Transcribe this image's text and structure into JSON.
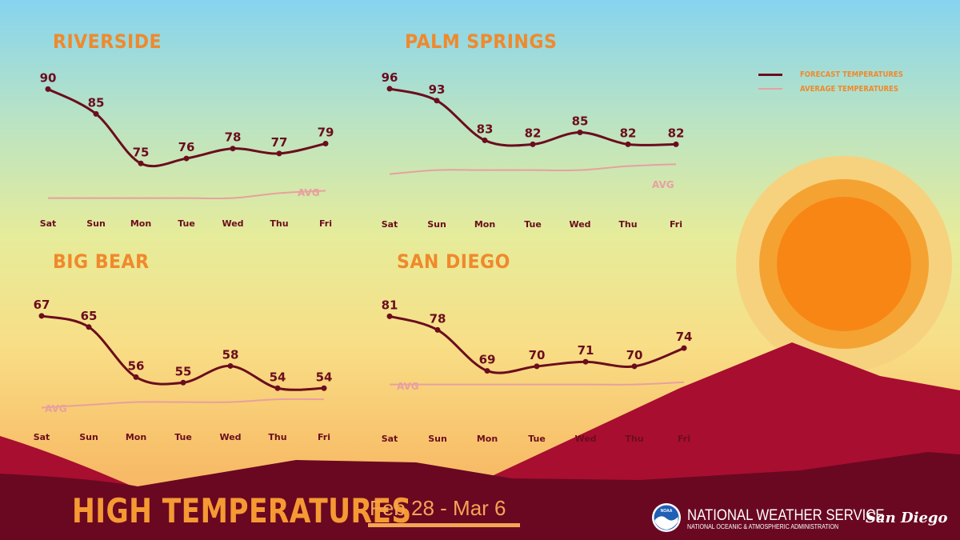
{
  "title": "HIGH TEMPERATURES",
  "date_range": "Feb 28 - Mar 6",
  "organization": "NATIONAL WEATHER SERVICE",
  "sub_organization": "NATIONAL OCEANIC & ATMOSPHERIC ADMINISTRATION",
  "logo_text": "NOAA",
  "office": "San Diego",
  "colors": {
    "forecast": "#6b0d1e",
    "average": "#e8a0a0",
    "city_title": "#f0892c",
    "mountain_dark": "#6a0822",
    "mountain_red": "#a80e30",
    "sun_outer": "#f6d27e",
    "sun_mid": "#f4a333",
    "sun_core": "#f78614"
  },
  "legend": [
    {
      "label": "FORECAST TEMPERATURES",
      "color": "#6b0d1e"
    },
    {
      "label": "AVERAGE TEMPERATURES",
      "color": "#e8a0a0"
    }
  ],
  "chart_data": [
    {
      "type": "line",
      "title": "RIVERSIDE",
      "categories": [
        "Sat",
        "Sun",
        "Mon",
        "Tue",
        "Wed",
        "Thu",
        "Fri"
      ],
      "series": [
        {
          "name": "FORECAST TEMPERATURES",
          "values": [
            90,
            85,
            75,
            76,
            78,
            77,
            79
          ]
        },
        {
          "name": "AVERAGE TEMPERATURES",
          "values": [
            68,
            68,
            68,
            68,
            68,
            69,
            69.5
          ]
        }
      ],
      "annotation": "AVG",
      "ylim": [
        66,
        92
      ]
    },
    {
      "type": "line",
      "title": "PALM SPRINGS",
      "categories": [
        "Sat",
        "Sun",
        "Mon",
        "Tue",
        "Wed",
        "Thu",
        "Fri"
      ],
      "series": [
        {
          "name": "FORECAST TEMPERATURES",
          "values": [
            96,
            93,
            83,
            82,
            85,
            82,
            82
          ]
        },
        {
          "name": "AVERAGE TEMPERATURES",
          "values": [
            74.5,
            75.5,
            75.5,
            75.5,
            75.5,
            76.5,
            77
          ]
        }
      ],
      "annotation": "AVG",
      "ylim": [
        72,
        98
      ]
    },
    {
      "type": "line",
      "title": "BIG BEAR",
      "categories": [
        "Sat",
        "Sun",
        "Mon",
        "Tue",
        "Wed",
        "Thu",
        "Fri"
      ],
      "series": [
        {
          "name": "FORECAST TEMPERATURES",
          "values": [
            67,
            65,
            56,
            55,
            58,
            54,
            54
          ]
        },
        {
          "name": "AVERAGE TEMPERATURES",
          "values": [
            50.5,
            51,
            51.5,
            51.5,
            51.5,
            52,
            52
          ]
        }
      ],
      "annotation": "AVG",
      "ylim": [
        49,
        69
      ]
    },
    {
      "type": "line",
      "title": "SAN DIEGO",
      "categories": [
        "Sat",
        "Sun",
        "Mon",
        "Tue",
        "Wed",
        "Thu",
        "Fri"
      ],
      "series": [
        {
          "name": "FORECAST TEMPERATURES",
          "values": [
            81,
            78,
            69,
            70,
            71,
            70,
            74
          ]
        },
        {
          "name": "AVERAGE TEMPERATURES",
          "values": [
            66,
            66,
            66,
            66,
            66,
            66,
            66.5
          ]
        }
      ],
      "annotation": "AVG",
      "ylim": [
        64,
        83
      ]
    }
  ]
}
